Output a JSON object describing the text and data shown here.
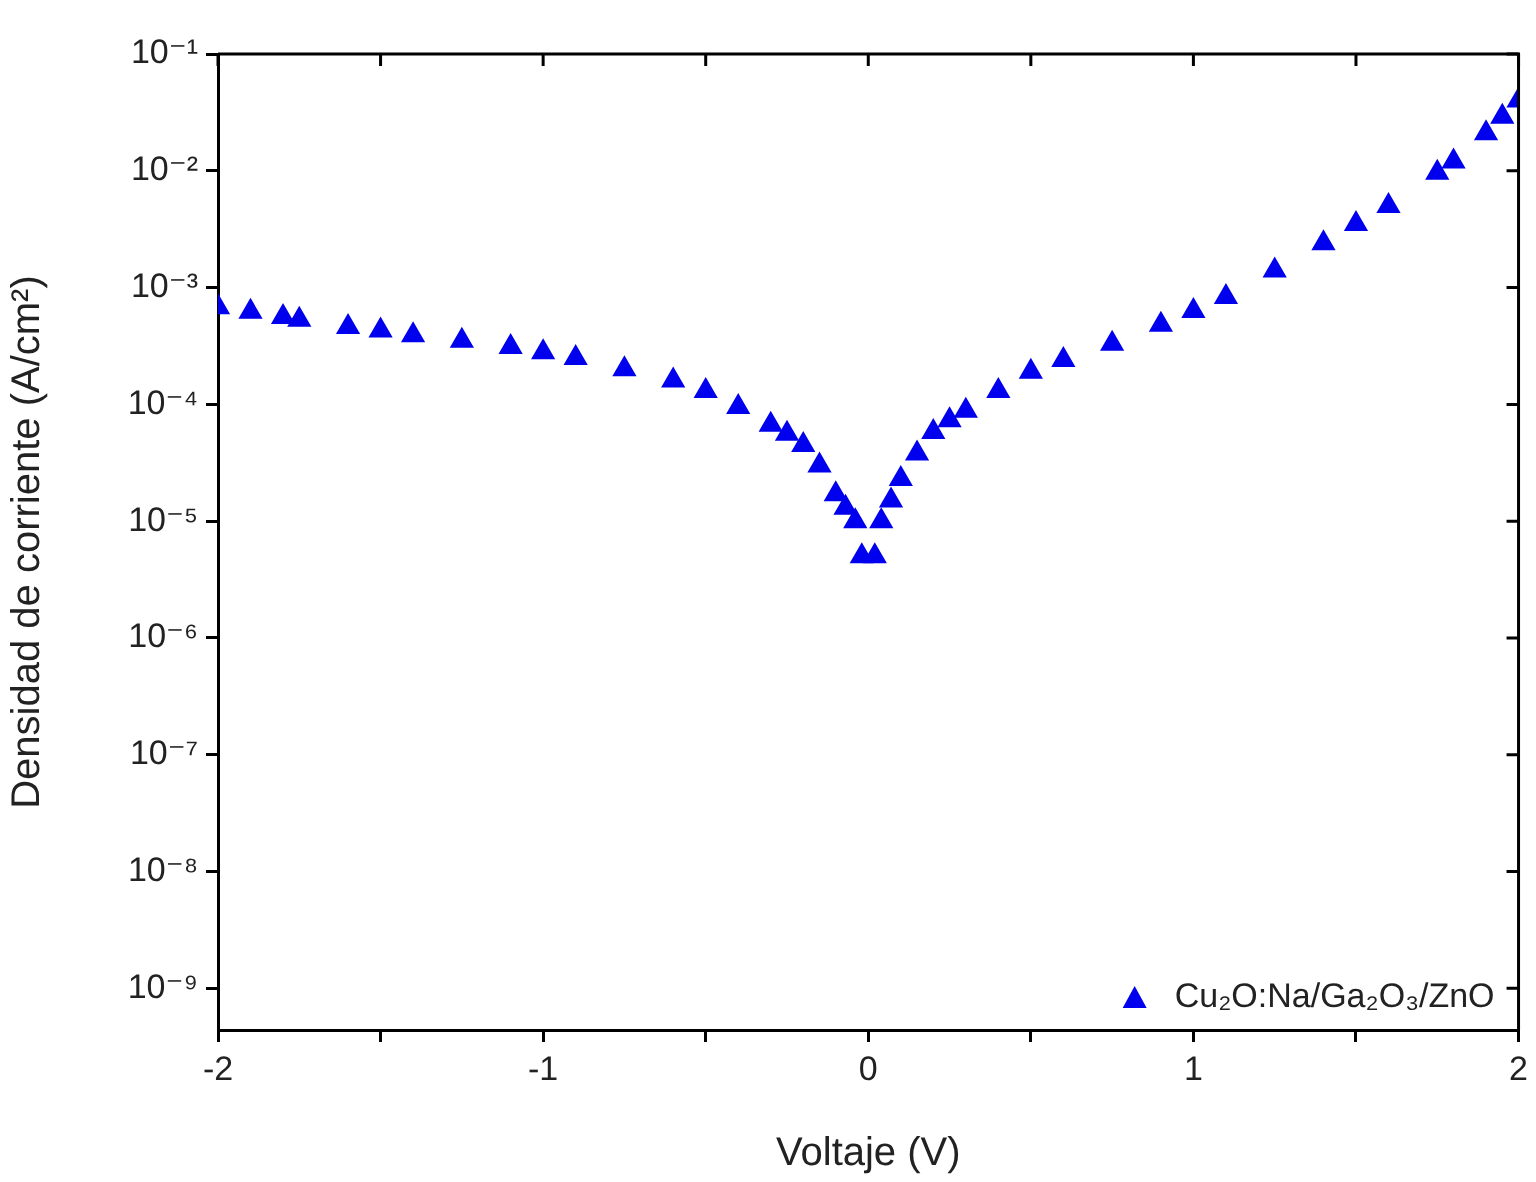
{
  "chart_data": {
    "type": "scatter",
    "xlabel": "Voltaje (V)",
    "ylabel": "Densidad de corriente (A/cm²)",
    "log": "y",
    "grid": false,
    "legend": "bottom right",
    "marker": "triangle",
    "xlim": [
      -2,
      2
    ],
    "xticks": [
      -2,
      {
        "value": -1.5,
        "label": null
      },
      -1,
      {
        "value": -0.5,
        "label": null
      },
      0,
      {
        "value": 0.5,
        "label": null
      },
      1,
      {
        "value": 1.5,
        "label": null
      },
      2
    ],
    "ylim": [
      4.4e-10,
      0.1
    ],
    "yticks": [
      {
        "value": 1e-09,
        "label": "10⁻⁹"
      },
      {
        "value": 1e-08,
        "label": "10⁻⁸"
      },
      {
        "value": 1e-07,
        "label": "10⁻⁷"
      },
      {
        "value": 1e-06,
        "label": "10⁻⁶"
      },
      {
        "value": 1e-05,
        "label": "10⁻⁵"
      },
      {
        "value": 0.0001,
        "label": "10⁻⁴"
      },
      {
        "value": 0.001,
        "label": "10⁻³"
      },
      {
        "value": 0.01,
        "label": "10⁻²"
      },
      {
        "value": 0.1,
        "label": "10⁻¹"
      }
    ],
    "series": [
      {
        "name": "Cu₂O:Na/Ga₂O₃/ZnO",
        "color": "#0000ee",
        "x": [
          -2,
          -1.9,
          -1.8,
          -1.75,
          -1.6,
          -1.5,
          -1.4,
          -1.25,
          -1.1,
          -1,
          -0.9,
          -0.75,
          -0.6,
          -0.5,
          -0.4,
          -0.3,
          -0.25,
          -0.2,
          -0.15,
          -0.1,
          -0.07,
          -0.04,
          -0.02,
          0.02,
          0.04,
          0.07,
          0.1,
          0.15,
          0.2,
          0.25,
          0.3,
          0.4,
          0.5,
          0.6,
          0.75,
          0.9,
          1,
          1.1,
          1.25,
          1.4,
          1.5,
          1.6,
          1.75,
          1.8,
          1.9,
          1.95,
          2
        ],
        "values": [
          0.00068,
          0.00062,
          0.00056,
          0.00053,
          0.00046,
          0.00043,
          0.00039,
          0.00035,
          0.00031,
          0.00028,
          0.00025,
          0.0002,
          0.00016,
          0.00013,
          9.5e-05,
          6.7e-05,
          5.6e-05,
          4.5e-05,
          3e-05,
          1.7e-05,
          1.3e-05,
          1e-05,
          5e-06,
          5e-06,
          1e-05,
          1.5e-05,
          2.3e-05,
          3.8e-05,
          5.8e-05,
          7.3e-05,
          8.8e-05,
          0.00013,
          0.00019,
          0.00024,
          0.00033,
          0.00048,
          0.00063,
          0.00083,
          0.0014,
          0.0024,
          0.0035,
          0.005,
          0.0096,
          0.012,
          0.021,
          0.029,
          0.04
        ]
      }
    ]
  }
}
